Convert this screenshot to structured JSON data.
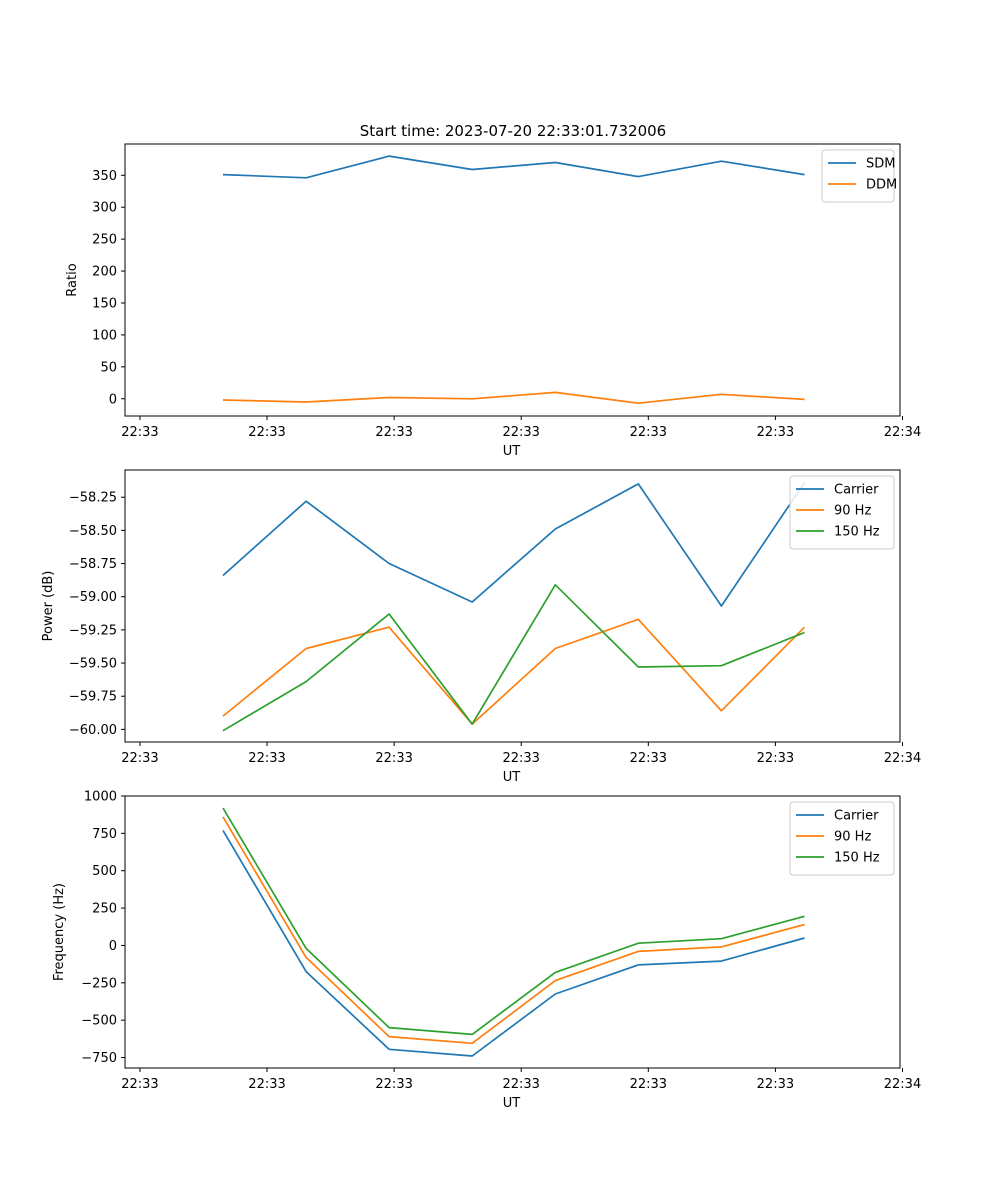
{
  "figure_title": "Start time: 2023-07-20 22:33:01.732006",
  "colors": {
    "blue": "#1f77b4",
    "orange": "#ff7f0e",
    "green": "#2ca02c"
  },
  "chart_data": [
    {
      "type": "line",
      "title": "Start time: 2023-07-20 22:33:01.732006",
      "xlabel": "UT",
      "ylabel": "Ratio",
      "x": [
        1,
        2,
        3,
        4,
        5,
        6,
        7,
        8
      ],
      "xlim": [
        -0.18,
        9.15
      ],
      "xticks": [
        0,
        1.53,
        3.06,
        4.59,
        6.12,
        7.65,
        9.18
      ],
      "xtick_labels": [
        "22:33",
        "22:33",
        "22:33",
        "22:33",
        "22:33",
        "22:33",
        "22:34"
      ],
      "ylim": [
        -27,
        399
      ],
      "yticks": [
        0,
        50,
        100,
        150,
        200,
        250,
        300,
        350
      ],
      "ytick_labels": [
        "0",
        "50",
        "100",
        "150",
        "200",
        "250",
        "300",
        "350"
      ],
      "legend_position": "top-right",
      "series": [
        {
          "name": "SDM",
          "color": "#1f77b4",
          "values": [
            351,
            346,
            380,
            359,
            370,
            348,
            372,
            351
          ]
        },
        {
          "name": "DDM",
          "color": "#ff7f0e",
          "values": [
            -2,
            -5,
            2,
            0,
            10,
            -7,
            7,
            -1
          ]
        }
      ]
    },
    {
      "type": "line",
      "title": "",
      "xlabel": "UT",
      "ylabel": "Power (dB)",
      "x": [
        1,
        2,
        3,
        4,
        5,
        6,
        7,
        8
      ],
      "xlim": [
        -0.18,
        9.15
      ],
      "xticks": [
        0,
        1.53,
        3.06,
        4.59,
        6.12,
        7.65,
        9.18
      ],
      "xtick_labels": [
        "22:33",
        "22:33",
        "22:33",
        "22:33",
        "22:33",
        "22:33",
        "22:34"
      ],
      "ylim": [
        -60.095,
        -58.045
      ],
      "yticks": [
        -60.0,
        -59.75,
        -59.5,
        -59.25,
        -59.0,
        -58.75,
        -58.5,
        -58.25
      ],
      "ytick_labels": [
        "−60.00",
        "−59.75",
        "−59.50",
        "−59.25",
        "−59.00",
        "−58.75",
        "−58.50",
        "−58.25"
      ],
      "legend_position": "top-right",
      "series": [
        {
          "name": "Carrier",
          "color": "#1f77b4",
          "values": [
            -58.84,
            -58.28,
            -58.75,
            -59.04,
            -58.49,
            -58.15,
            -59.07,
            -58.14
          ]
        },
        {
          "name": "90 Hz",
          "color": "#ff7f0e",
          "values": [
            -59.9,
            -59.39,
            -59.23,
            -59.96,
            -59.39,
            -59.17,
            -59.86,
            -59.23
          ]
        },
        {
          "name": "150 Hz",
          "color": "#2ca02c",
          "values": [
            -60.01,
            -59.64,
            -59.13,
            -59.96,
            -58.91,
            -59.53,
            -59.52,
            -59.27
          ]
        }
      ]
    },
    {
      "type": "line",
      "title": "",
      "xlabel": "UT",
      "ylabel": "Frequency (Hz)",
      "x": [
        1,
        2,
        3,
        4,
        5,
        6,
        7,
        8
      ],
      "xlim": [
        -0.18,
        9.15
      ],
      "xticks": [
        0,
        1.53,
        3.06,
        4.59,
        6.12,
        7.65,
        9.18
      ],
      "xtick_labels": [
        "22:33",
        "22:33",
        "22:33",
        "22:33",
        "22:33",
        "22:33",
        "22:34"
      ],
      "ylim": [
        -820,
        1000
      ],
      "yticks": [
        -750,
        -500,
        -250,
        0,
        250,
        500,
        750,
        1000
      ],
      "ytick_labels": [
        "−750",
        "−500",
        "−250",
        "0",
        "250",
        "500",
        "750",
        "1000"
      ],
      "legend_position": "top-right",
      "series": [
        {
          "name": "Carrier",
          "color": "#1f77b4",
          "values": [
            770,
            -175,
            -695,
            -740,
            -325,
            -130,
            -105,
            50
          ]
        },
        {
          "name": "90 Hz",
          "color": "#ff7f0e",
          "values": [
            860,
            -80,
            -610,
            -655,
            -235,
            -40,
            -10,
            140
          ]
        },
        {
          "name": "150 Hz",
          "color": "#2ca02c",
          "values": [
            920,
            -20,
            -550,
            -595,
            -180,
            15,
            45,
            195
          ]
        }
      ]
    }
  ]
}
